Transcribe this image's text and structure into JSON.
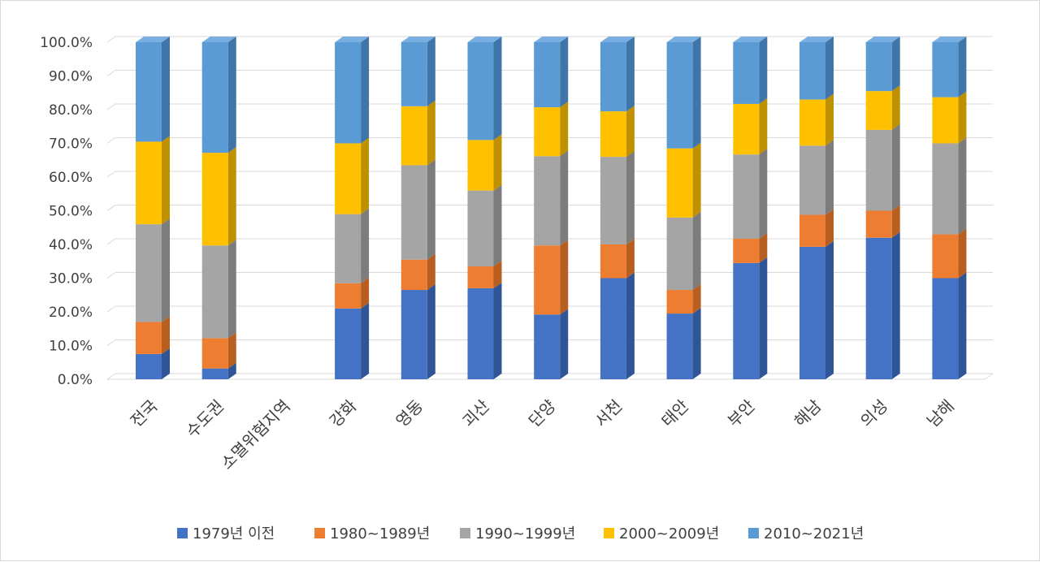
{
  "chart_data": {
    "type": "bar",
    "stacked": true,
    "percent": true,
    "style": "3d-column",
    "title": "",
    "xlabel": "",
    "ylabel": "",
    "ylim": [
      0,
      100
    ],
    "yticks": [
      "0.0%",
      "10.0%",
      "20.0%",
      "30.0%",
      "40.0%",
      "50.0%",
      "60.0%",
      "70.0%",
      "80.0%",
      "90.0%",
      "100.0%"
    ],
    "grid": true,
    "legend_position": "bottom",
    "categories": [
      "전국",
      "수도권",
      "소멸위험지역",
      "강화",
      "영동",
      "괴산",
      "단양",
      "서천",
      "태안",
      "부안",
      "해남",
      "의성",
      "남해"
    ],
    "series": [
      {
        "name": "1979년 이전",
        "color": "#4472c4",
        "side": "#2f5597",
        "top": "#5a85d6",
        "values": [
          7.5,
          3.2,
          null,
          21.0,
          26.5,
          27.0,
          19.2,
          30.0,
          19.5,
          34.5,
          39.3,
          42.0,
          30.0
        ]
      },
      {
        "name": "1980~1989년",
        "color": "#ed7d31",
        "side": "#b85e20",
        "top": "#f29354",
        "values": [
          9.5,
          9.0,
          null,
          7.5,
          9.0,
          6.5,
          20.5,
          10.0,
          7.0,
          7.2,
          9.5,
          8.0,
          13.0
        ]
      },
      {
        "name": "1990~1999년",
        "color": "#a5a5a5",
        "side": "#7c7c7c",
        "top": "#b9b9b9",
        "values": [
          29.0,
          27.5,
          null,
          20.5,
          28.0,
          22.5,
          26.5,
          26.0,
          21.5,
          25.0,
          20.5,
          24.0,
          27.0
        ]
      },
      {
        "name": "2000~2009년",
        "color": "#ffc000",
        "side": "#bf9000",
        "top": "#ffcd3a",
        "values": [
          24.5,
          27.5,
          null,
          21.0,
          17.5,
          15.0,
          14.5,
          13.5,
          20.5,
          15.0,
          13.7,
          11.5,
          13.7
        ]
      },
      {
        "name": "2010~2021년",
        "color": "#5b9bd5",
        "side": "#3f75a8",
        "top": "#79afe0",
        "values": [
          29.5,
          32.8,
          null,
          30.0,
          19.0,
          29.0,
          19.3,
          20.5,
          31.5,
          18.3,
          17.0,
          14.5,
          16.3
        ]
      }
    ]
  }
}
